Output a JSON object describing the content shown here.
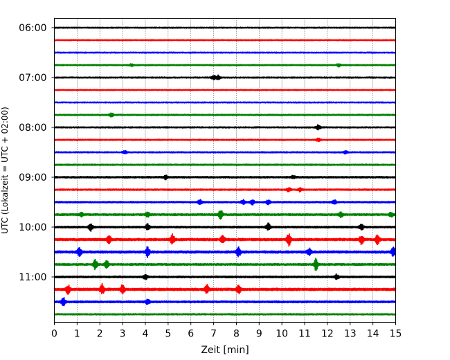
{
  "chart_data": {
    "type": "line",
    "title": "",
    "xlabel": "Zeit  [min]",
    "ylabel": "UTC (Lokalzeit = UTC + 02:00)",
    "xlim": [
      0,
      15
    ],
    "xticks": [
      0,
      1,
      2,
      3,
      4,
      5,
      6,
      7,
      8,
      9,
      10,
      11,
      12,
      13,
      14,
      15
    ],
    "xtick_labels": [
      "0",
      "1",
      "2",
      "3",
      "4",
      "5",
      "6",
      "7",
      "8",
      "9",
      "10",
      "11",
      "12",
      "13",
      "14",
      "15"
    ],
    "ytick_labels": [
      "06:00",
      "07:00",
      "08:00",
      "09:00",
      "10:00",
      "11:00"
    ],
    "trace_start_times": [
      "06:00",
      "06:15",
      "06:30",
      "06:45",
      "07:00",
      "07:15",
      "07:30",
      "07:45",
      "08:00",
      "08:15",
      "08:30",
      "08:45",
      "09:00",
      "09:15",
      "09:30",
      "09:45",
      "10:00",
      "10:15",
      "10:30",
      "10:45",
      "11:00",
      "11:15",
      "11:30",
      "11:45"
    ],
    "trace_colors": [
      "#000000",
      "#ff0000",
      "#0000ff",
      "#008000"
    ],
    "grid": "vertical dotted",
    "legend": "none",
    "traces": [
      {
        "start": "06:00",
        "amplitude": 0.08,
        "events": []
      },
      {
        "start": "06:15",
        "amplitude": 0.08,
        "events": []
      },
      {
        "start": "06:30",
        "amplitude": 0.08,
        "events": []
      },
      {
        "start": "06:45",
        "amplitude": 0.09,
        "events": [
          [
            3.4,
            0.2
          ],
          [
            12.5,
            0.2
          ]
        ]
      },
      {
        "start": "07:00",
        "amplitude": 0.09,
        "events": [
          [
            7.0,
            0.3
          ],
          [
            7.2,
            0.3
          ]
        ]
      },
      {
        "start": "07:15",
        "amplitude": 0.08,
        "events": []
      },
      {
        "start": "07:30",
        "amplitude": 0.08,
        "events": []
      },
      {
        "start": "07:45",
        "amplitude": 0.1,
        "events": [
          [
            2.5,
            0.3
          ]
        ]
      },
      {
        "start": "08:00",
        "amplitude": 0.09,
        "events": [
          [
            11.6,
            0.35
          ]
        ]
      },
      {
        "start": "08:15",
        "amplitude": 0.09,
        "events": [
          [
            11.6,
            0.25
          ]
        ]
      },
      {
        "start": "08:30",
        "amplitude": 0.09,
        "events": [
          [
            3.1,
            0.2
          ],
          [
            12.8,
            0.2
          ]
        ]
      },
      {
        "start": "08:45",
        "amplitude": 0.1,
        "events": []
      },
      {
        "start": "09:00",
        "amplitude": 0.12,
        "events": [
          [
            4.9,
            0.3
          ],
          [
            10.5,
            0.2
          ]
        ]
      },
      {
        "start": "09:15",
        "amplitude": 0.11,
        "events": [
          [
            10.3,
            0.3
          ],
          [
            10.8,
            0.25
          ]
        ]
      },
      {
        "start": "09:30",
        "amplitude": 0.11,
        "events": [
          [
            6.4,
            0.35
          ],
          [
            8.3,
            0.4
          ],
          [
            8.7,
            0.35
          ],
          [
            9.4,
            0.3
          ],
          [
            12.3,
            0.3
          ]
        ]
      },
      {
        "start": "09:45",
        "amplitude": 0.14,
        "events": [
          [
            1.2,
            0.3
          ],
          [
            4.1,
            0.3
          ],
          [
            7.3,
            0.8
          ],
          [
            12.6,
            0.35
          ],
          [
            14.8,
            0.3
          ]
        ]
      },
      {
        "start": "10:00",
        "amplitude": 0.13,
        "events": [
          [
            1.6,
            0.5
          ],
          [
            4.1,
            0.4
          ],
          [
            9.4,
            0.6
          ],
          [
            13.5,
            0.4
          ]
        ]
      },
      {
        "start": "10:15",
        "amplitude": 0.17,
        "events": [
          [
            2.4,
            0.6
          ],
          [
            5.2,
            0.7
          ],
          [
            7.4,
            0.6
          ],
          [
            10.3,
            0.9
          ],
          [
            13.5,
            0.6
          ],
          [
            14.2,
            0.6
          ]
        ]
      },
      {
        "start": "10:30",
        "amplitude": 0.17,
        "events": [
          [
            1.1,
            0.6
          ],
          [
            4.1,
            0.7
          ],
          [
            8.1,
            0.6
          ],
          [
            11.2,
            0.5
          ],
          [
            14.9,
            0.6
          ]
        ]
      },
      {
        "start": "10:45",
        "amplitude": 0.14,
        "events": [
          [
            1.8,
            0.7
          ],
          [
            2.3,
            0.5
          ],
          [
            11.5,
            0.8
          ]
        ]
      },
      {
        "start": "11:00",
        "amplitude": 0.13,
        "events": [
          [
            4.0,
            0.35
          ],
          [
            12.4,
            0.35
          ]
        ]
      },
      {
        "start": "11:15",
        "amplitude": 0.18,
        "events": [
          [
            0.6,
            0.6
          ],
          [
            2.1,
            0.7
          ],
          [
            3.0,
            0.6
          ],
          [
            6.7,
            0.6
          ],
          [
            8.1,
            0.6
          ]
        ]
      },
      {
        "start": "11:30",
        "amplitude": 0.14,
        "events": [
          [
            0.4,
            0.55
          ],
          [
            4.1,
            0.3
          ]
        ]
      },
      {
        "start": "11:45",
        "amplitude": 0.1,
        "events": []
      }
    ]
  }
}
